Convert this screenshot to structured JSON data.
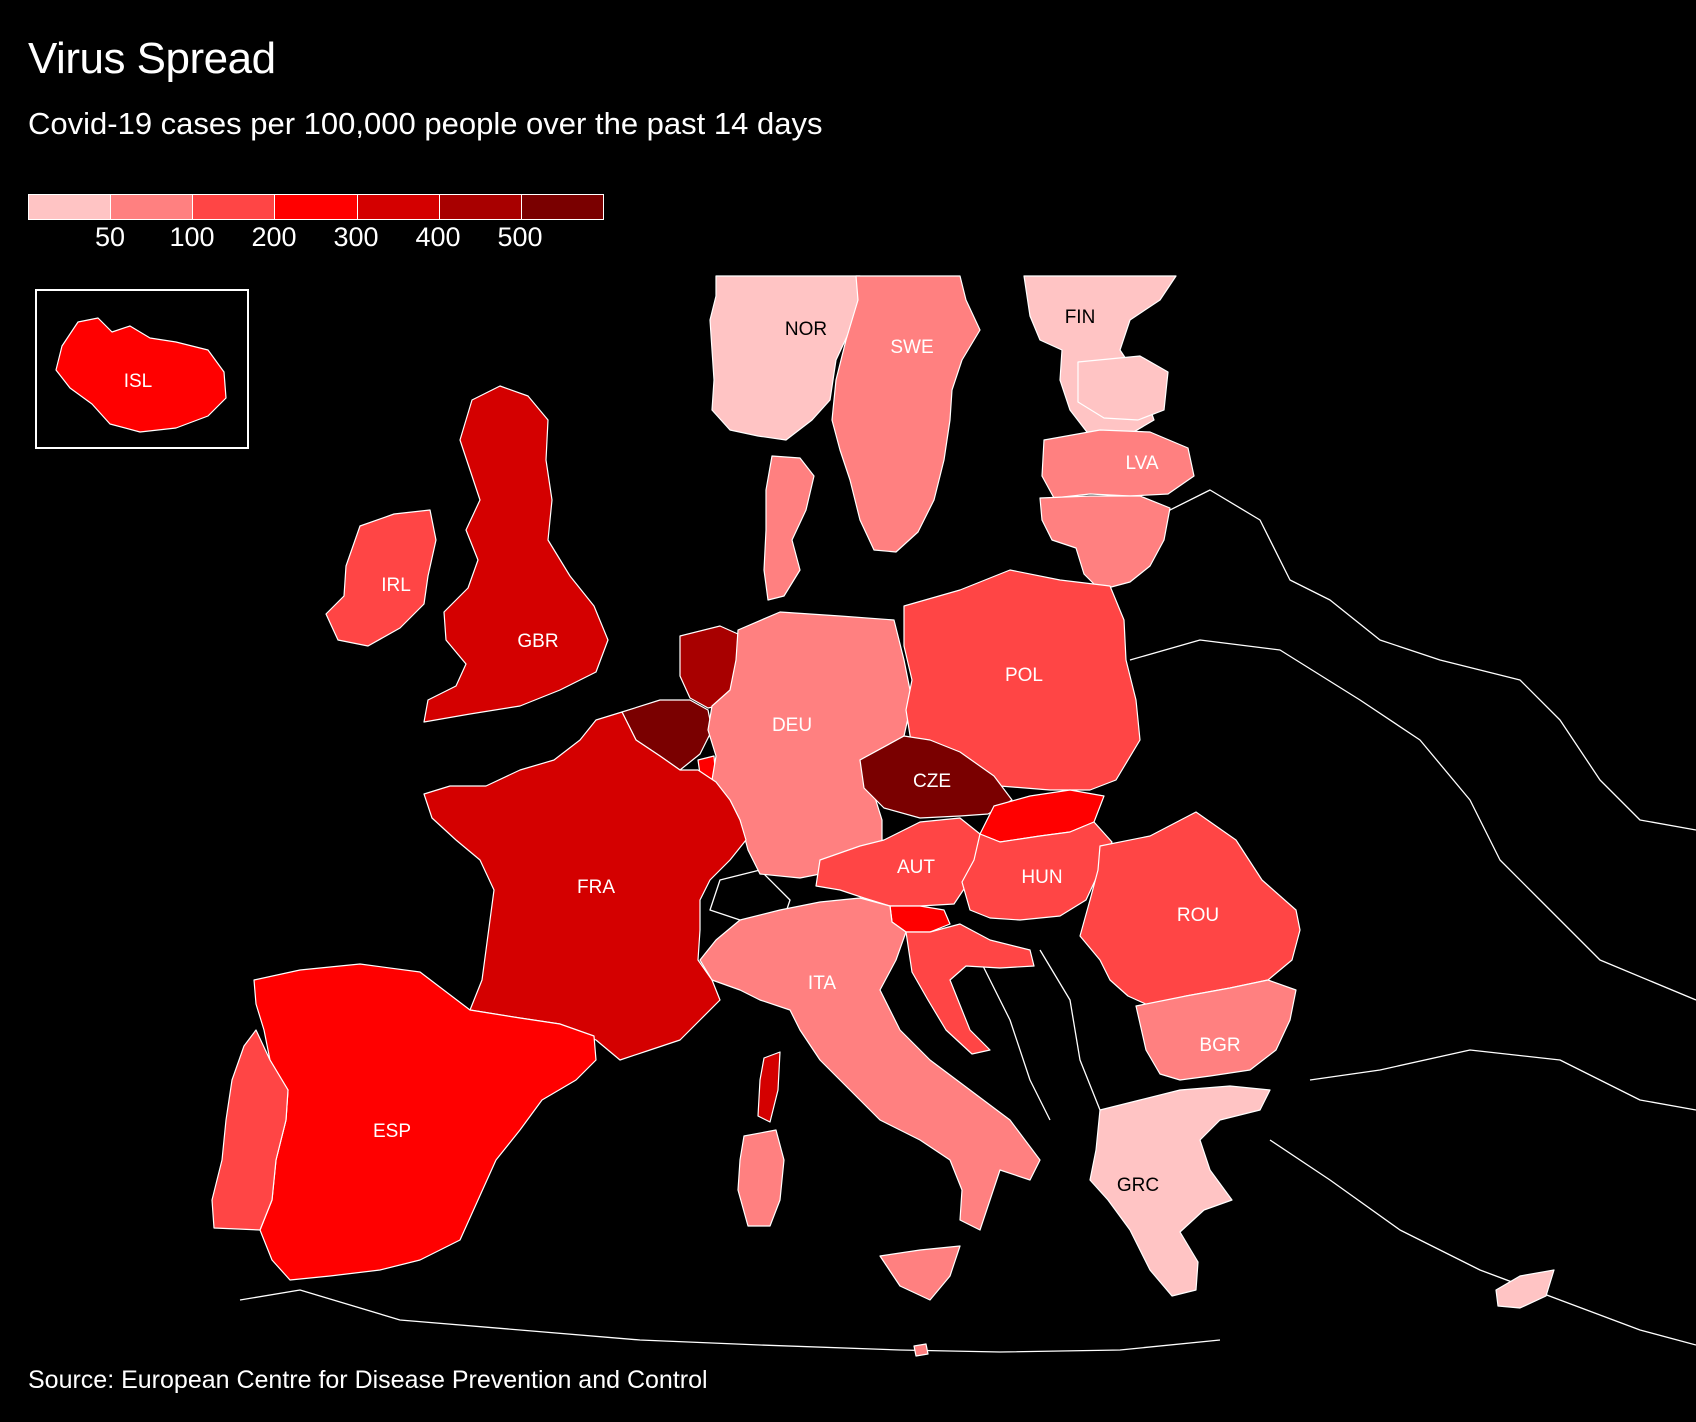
{
  "title": "Virus Spread",
  "subtitle": "Covid-19 cases per 100,000 people over the past 14 days",
  "source": "Source: European Centre for Disease Prevention and Control",
  "legend": {
    "ticks": [
      "50",
      "100",
      "200",
      "300",
      "400",
      "500"
    ],
    "colors": [
      "#ffc4c4",
      "#ff8080",
      "#ff4545",
      "#ff0000",
      "#d40000",
      "#a80000",
      "#7a0000"
    ]
  },
  "countries": {
    "NOR": {
      "label": "NOR",
      "color": "#ffc4c4"
    },
    "SWE": {
      "label": "SWE",
      "color": "#ff8080"
    },
    "FIN": {
      "label": "FIN",
      "color": "#ffc4c4"
    },
    "EST": {
      "label": "",
      "color": "#ffc4c4"
    },
    "LVA": {
      "label": "LVA",
      "color": "#ff8080"
    },
    "LTU": {
      "label": "",
      "color": "#ff8080"
    },
    "ISL": {
      "label": "ISL",
      "color": "#ff0000"
    },
    "IRL": {
      "label": "IRL",
      "color": "#ff4545"
    },
    "GBR": {
      "label": "GBR",
      "color": "#d40000"
    },
    "NLD": {
      "label": "",
      "color": "#a80000"
    },
    "BEL": {
      "label": "",
      "color": "#7a0000"
    },
    "LUX": {
      "label": "",
      "color": "#ff0000"
    },
    "DNK": {
      "label": "",
      "color": "#ff8080"
    },
    "DEU": {
      "label": "DEU",
      "color": "#ff8080"
    },
    "POL": {
      "label": "POL",
      "color": "#ff4545"
    },
    "CZE": {
      "label": "CZE",
      "color": "#7a0000"
    },
    "SVK": {
      "label": "",
      "color": "#ff0000"
    },
    "AUT": {
      "label": "AUT",
      "color": "#ff4545"
    },
    "HUN": {
      "label": "HUN",
      "color": "#ff4545"
    },
    "SVN": {
      "label": "",
      "color": "#ff0000"
    },
    "HRV": {
      "label": "",
      "color": "#ff4545"
    },
    "ROU": {
      "label": "ROU",
      "color": "#ff4545"
    },
    "BGR": {
      "label": "BGR",
      "color": "#ff8080"
    },
    "GRC": {
      "label": "GRC",
      "color": "#ffc4c4"
    },
    "CYP": {
      "label": "",
      "color": "#ffc4c4"
    },
    "FRA": {
      "label": "FRA",
      "color": "#d40000"
    },
    "ESP": {
      "label": "ESP",
      "color": "#ff0000"
    },
    "PRT": {
      "label": "",
      "color": "#ff4545"
    },
    "ITA": {
      "label": "ITA",
      "color": "#ff8080"
    },
    "CORSICA": {
      "label": "",
      "color": "#d40000"
    },
    "SARDINIA": {
      "label": "",
      "color": "#ff8080"
    },
    "MALTA": {
      "label": "",
      "color": "#ff8080"
    }
  },
  "label_colors": {
    "light": "#000000",
    "dark": "#ffffff"
  }
}
